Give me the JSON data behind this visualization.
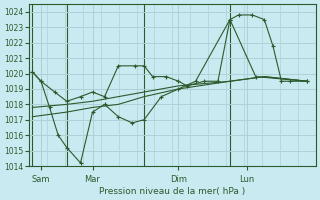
{
  "bg_color": "#c8eaf0",
  "grid_color": "#b0d0d8",
  "line_color": "#2d5a2d",
  "xlabel_text": "Pression niveau de la mer( hPa )",
  "ylim": [
    1014,
    1024.5
  ],
  "yticks": [
    1014,
    1015,
    1016,
    1017,
    1018,
    1019,
    1020,
    1021,
    1022,
    1023,
    1024
  ],
  "x_tick_labels": [
    "Sam",
    "Mar",
    "Dim",
    "Lun"
  ],
  "x_tick_positions": [
    0.5,
    3.5,
    8.5,
    12.5
  ],
  "x_vlines": [
    2.0,
    6.5,
    11.5
  ],
  "xlim": [
    -0.2,
    16.5
  ],
  "series": [
    {
      "comment": "top wavy line with many markers - starts at 1020, drops, then rises to 1023.5",
      "x": [
        0,
        0.5,
        1.3,
        2.0,
        2.8,
        3.5,
        4.2,
        5.0,
        6.0,
        6.5,
        7.0,
        7.8,
        8.5,
        9.0,
        10.0,
        10.8,
        11.5,
        12.0,
        12.8,
        13.5,
        14.0,
        14.5,
        15.0,
        16.0
      ],
      "y": [
        1020.1,
        1019.5,
        1018.8,
        1018.2,
        1018.5,
        1018.8,
        1018.5,
        1020.5,
        1020.5,
        1020.5,
        1019.8,
        1019.8,
        1019.5,
        1019.2,
        1019.5,
        1019.5,
        1023.5,
        1023.8,
        1023.8,
        1023.5,
        1021.8,
        1019.5,
        1019.5,
        1019.5
      ],
      "has_markers": true
    },
    {
      "comment": "second line with dips - starts 1020, goes down to 1014, comes back up",
      "x": [
        0,
        0.5,
        1.0,
        1.5,
        2.0,
        2.8,
        3.5,
        4.2,
        5.0,
        5.8,
        6.5,
        7.5,
        8.5,
        9.5,
        11.5,
        13.0,
        16.0
      ],
      "y": [
        1020.1,
        1019.5,
        1017.8,
        1016.0,
        1015.2,
        1014.2,
        1017.5,
        1018.0,
        1017.2,
        1016.8,
        1017.0,
        1018.5,
        1019.0,
        1019.5,
        1023.5,
        1019.8,
        1019.5
      ],
      "has_markers": true
    },
    {
      "comment": "nearly straight rising line from 1017 to 1019.5",
      "x": [
        0,
        2.0,
        3.5,
        5.0,
        6.5,
        8.5,
        11.5,
        13.5,
        16.0
      ],
      "y": [
        1017.2,
        1017.5,
        1017.8,
        1018.0,
        1018.5,
        1019.0,
        1019.5,
        1019.8,
        1019.5
      ],
      "has_markers": false
    },
    {
      "comment": "line starting at 1017.8 rising to 1019.5",
      "x": [
        0,
        2.0,
        3.5,
        5.0,
        6.5,
        8.5,
        11.5,
        13.5,
        16.0
      ],
      "y": [
        1017.8,
        1018.0,
        1018.2,
        1018.5,
        1018.8,
        1019.2,
        1019.5,
        1019.8,
        1019.5
      ],
      "has_markers": false
    }
  ]
}
